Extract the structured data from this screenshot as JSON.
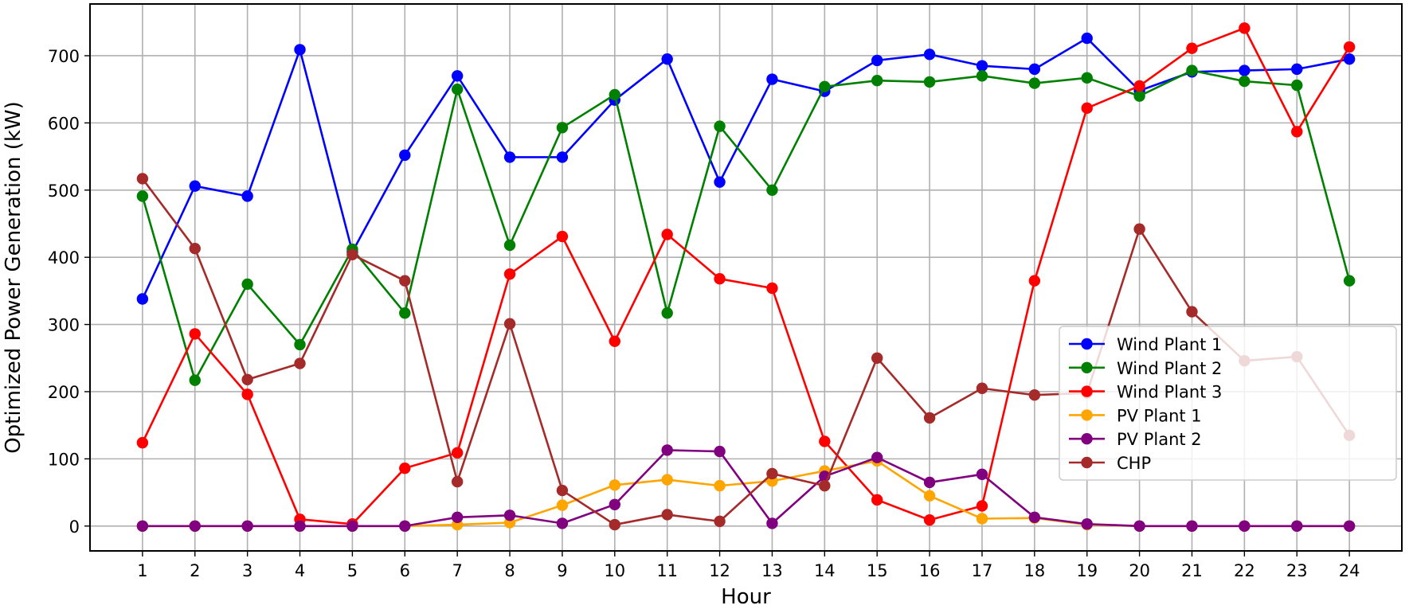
{
  "chart_data": {
    "type": "line",
    "title": "",
    "xlabel": "Hour",
    "ylabel": "Optimized Power Generation (kW)",
    "x": [
      1,
      2,
      3,
      4,
      5,
      6,
      7,
      8,
      9,
      10,
      11,
      12,
      13,
      14,
      15,
      16,
      17,
      18,
      19,
      20,
      21,
      22,
      23,
      24
    ],
    "x_tick_labels": [
      "1",
      "2",
      "3",
      "4",
      "5",
      "6",
      "7",
      "8",
      "9",
      "10",
      "11",
      "12",
      "13",
      "14",
      "15",
      "16",
      "17",
      "18",
      "19",
      "20",
      "21",
      "22",
      "23",
      "24"
    ],
    "y_ticks": [
      0,
      100,
      200,
      300,
      400,
      500,
      600,
      700
    ],
    "y_tick_labels": [
      "0",
      "100",
      "200",
      "300",
      "400",
      "500",
      "600",
      "700"
    ],
    "xlim": [
      0.0,
      25.0
    ],
    "ylim": [
      -37,
      777
    ],
    "grid": true,
    "legend_position": "lower-right",
    "series": [
      {
        "name": "Wind Plant 1",
        "color": "#0000ff",
        "values": [
          338,
          506,
          491,
          709,
          408,
          552,
          670,
          549,
          549,
          634,
          695,
          512,
          665,
          647,
          693,
          702,
          685,
          680,
          726,
          648,
          676,
          678,
          680,
          695
        ]
      },
      {
        "name": "Wind Plant 2",
        "color": "#008000",
        "values": [
          491,
          217,
          360,
          270,
          412,
          317,
          650,
          418,
          593,
          642,
          317,
          595,
          500,
          654,
          663,
          661,
          670,
          659,
          667,
          640,
          678,
          662,
          656,
          365
        ]
      },
      {
        "name": "Wind Plant 3",
        "color": "#ff0000",
        "values": [
          124,
          286,
          196,
          10,
          3,
          86,
          109,
          375,
          431,
          275,
          434,
          368,
          354,
          126,
          39,
          9,
          30,
          365,
          622,
          655,
          711,
          741,
          587,
          713
        ]
      },
      {
        "name": "PV Plant 1",
        "color": "#ffa500",
        "values": [
          0,
          0,
          0,
          0,
          0,
          0,
          2,
          5,
          31,
          61,
          69,
          60,
          67,
          82,
          97,
          45,
          11,
          12,
          2,
          0,
          0,
          0,
          0,
          0
        ]
      },
      {
        "name": "PV Plant 2",
        "color": "#800080",
        "values": [
          0,
          0,
          0,
          0,
          0,
          0,
          13,
          16,
          4,
          32,
          113,
          111,
          4,
          74,
          102,
          65,
          77,
          13,
          3,
          0,
          0,
          0,
          0,
          0
        ]
      },
      {
        "name": "CHP",
        "color": "#a52a2a",
        "values": [
          517,
          413,
          218,
          242,
          404,
          365,
          66,
          301,
          53,
          2,
          17,
          7,
          78,
          60,
          250,
          161,
          205,
          195,
          198,
          442,
          319,
          246,
          252,
          135
        ]
      }
    ]
  }
}
